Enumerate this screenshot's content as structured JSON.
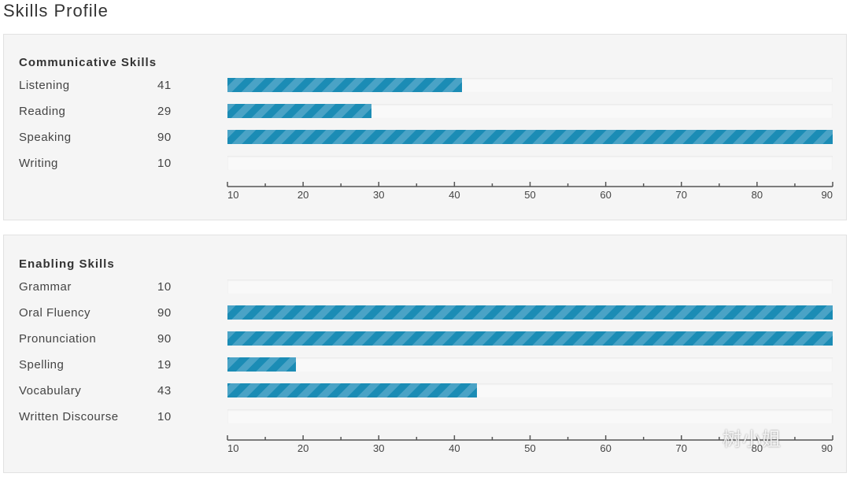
{
  "page_title": "Skills Profile",
  "watermark": "树小姐",
  "colors": {
    "bar": "#1b8cb5",
    "bar_stripe": "#4aa3c6",
    "panel": "#f5f5f5",
    "track": "#f9f9f9"
  },
  "chart_data": [
    {
      "type": "bar",
      "orientation": "horizontal",
      "title": "Communicative Skills",
      "categories": [
        "Listening",
        "Reading",
        "Speaking",
        "Writing"
      ],
      "values": [
        41,
        29,
        90,
        10
      ],
      "xlim": [
        10,
        90
      ],
      "ticks": [
        10,
        20,
        30,
        40,
        50,
        60,
        70,
        80,
        90
      ],
      "grid": false
    },
    {
      "type": "bar",
      "orientation": "horizontal",
      "title": "Enabling Skills",
      "categories": [
        "Grammar",
        "Oral Fluency",
        "Pronunciation",
        "Spelling",
        "Vocabulary",
        "Written Discourse"
      ],
      "values": [
        10,
        90,
        90,
        19,
        43,
        10
      ],
      "xlim": [
        10,
        90
      ],
      "ticks": [
        10,
        20,
        30,
        40,
        50,
        60,
        70,
        80,
        90
      ],
      "grid": false
    }
  ]
}
